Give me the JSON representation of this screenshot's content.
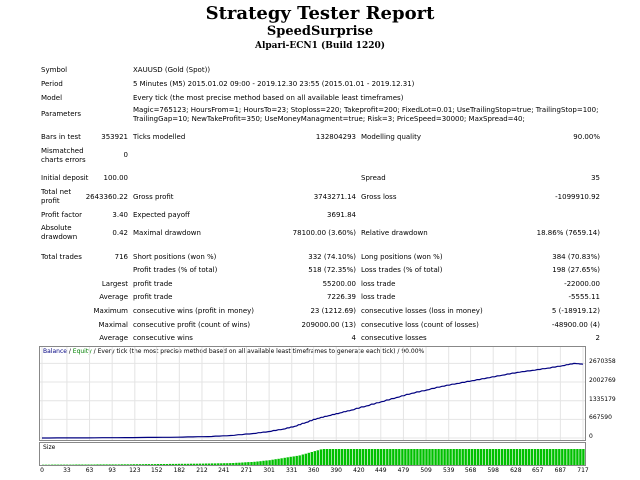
{
  "header": {
    "title": "Strategy Tester Report",
    "subtitle": "SpeedSurprise",
    "build": "Alpari-ECN1 (Build 1220)"
  },
  "info": {
    "symbol_label": "Symbol",
    "symbol_value": "XAUUSD (Gold (Spot))",
    "period_label": "Period",
    "period_value": "5 Minutes (M5) 2015.01.02 09:00 - 2019.12.30 23:55 (2015.01.01 - 2019.12.31)",
    "model_label": "Model",
    "model_value": "Every tick (the most precise method based on all available least timeframes)",
    "params_label": "Parameters",
    "params_line1": "Magic=765123; HoursFrom=1; HoursTo=23; Stoploss=220; Takeprofit=200; FixedLot=0.01; UseTrailingStop=true; TrailingStop=100;",
    "params_line2": "TrailingGap=10; NewTakeProfit=350; UseMoneyManagment=true; Risk=3; PriceSpeed=30000; MaxSpread=40;"
  },
  "stats": {
    "bars_label": "Bars in test",
    "bars_value": "353921",
    "ticks_label": "Ticks modelled",
    "ticks_value": "132804293",
    "quality_label": "Modelling quality",
    "quality_value": "90.00%",
    "mismatch_label1": "Mismatched",
    "mismatch_label2": "charts errors",
    "mismatch_value": "0",
    "deposit_label": "Initial deposit",
    "deposit_value": "100.00",
    "spread_label": "Spread",
    "spread_value": "35",
    "netprofit_label1": "Total net",
    "netprofit_label2": "profit",
    "netprofit_value": "2643360.22",
    "grossprofit_label": "Gross profit",
    "grossprofit_value": "3743271.14",
    "grossloss_label": "Gross loss",
    "grossloss_value": "-1099910.92",
    "pf_label": "Profit factor",
    "pf_value": "3.40",
    "payoff_label": "Expected payoff",
    "payoff_value": "3691.84",
    "absdd_label1": "Absolute",
    "absdd_label2": "drawdown",
    "absdd_value": "0.42",
    "maxdd_label": "Maximal drawdown",
    "maxdd_value": "78100.00 (3.60%)",
    "reldd_label": "Relative drawdown",
    "reldd_value": "18.86% (7659.14)",
    "trades_label": "Total trades",
    "trades_value": "716",
    "short_label": "Short positions (won %)",
    "short_value": "332 (74.10%)",
    "long_label": "Long positions (won %)",
    "long_value": "384 (70.83%)",
    "ptrades_label": "Profit trades (% of total)",
    "ptrades_value": "518 (72.35%)",
    "ltrades_label": "Loss trades (% of total)",
    "ltrades_value": "198 (27.65%)",
    "largest_label": "Largest",
    "largest_p_label": "profit trade",
    "largest_p_value": "55200.00",
    "largest_l_label": "loss trade",
    "largest_l_value": "-22000.00",
    "average_label": "Average",
    "average_p_label": "profit trade",
    "average_p_value": "7226.39",
    "average_l_label": "loss trade",
    "average_l_value": "-5555.11",
    "maximum_label": "Maximum",
    "maximum_p_label": "consecutive wins (profit in money)",
    "maximum_p_value": "23 (1212.69)",
    "maximum_l_label": "consecutive losses (loss in money)",
    "maximum_l_value": "5 (-18919.12)",
    "maximal_label": "Maximal",
    "maximal_p_label": "consecutive profit (count of wins)",
    "maximal_p_value": "209000.00 (13)",
    "maximal_l_label": "consecutive loss (count of losses)",
    "maximal_l_value": "-48900.00 (4)",
    "avg2_label": "Average",
    "avg2_p_label": "consecutive wins",
    "avg2_p_value": "4",
    "avg2_l_label": "consecutive losses",
    "avg2_l_value": "2"
  },
  "chart_data": {
    "type": "line",
    "caption_balance": "Balance",
    "caption_sep": " / ",
    "caption_equity": "Equity",
    "caption_rest": " / Every tick (the most precise method based on all available least timeframes to generate each tick) / 90.00%",
    "size_label": "Size",
    "y_ticks": [
      "2670358",
      "2002769",
      "1335179",
      "667590",
      "0"
    ],
    "y_values": [
      2670358,
      2002769,
      1335179,
      667590,
      0
    ],
    "ylim": [
      0,
      2900000
    ],
    "x_ticks": [
      "0",
      "33",
      "63",
      "93",
      "123",
      "152",
      "182",
      "212",
      "241",
      "271",
      "301",
      "331",
      "360",
      "390",
      "420",
      "449",
      "479",
      "509",
      "539",
      "568",
      "598",
      "628",
      "657",
      "687",
      "717"
    ],
    "xlim": [
      0,
      717
    ],
    "balance": [
      [
        0,
        100
      ],
      [
        60,
        5000
      ],
      [
        120,
        15000
      ],
      [
        180,
        30000
      ],
      [
        220,
        50000
      ],
      [
        250,
        90000
      ],
      [
        280,
        160000
      ],
      [
        300,
        230000
      ],
      [
        320,
        320000
      ],
      [
        335,
        420000
      ],
      [
        350,
        560000
      ],
      [
        365,
        700000
      ],
      [
        380,
        800000
      ],
      [
        395,
        900000
      ],
      [
        410,
        1000000
      ],
      [
        430,
        1150000
      ],
      [
        450,
        1300000
      ],
      [
        470,
        1450000
      ],
      [
        490,
        1600000
      ],
      [
        510,
        1720000
      ],
      [
        530,
        1850000
      ],
      [
        550,
        1950000
      ],
      [
        570,
        2050000
      ],
      [
        590,
        2150000
      ],
      [
        610,
        2250000
      ],
      [
        630,
        2350000
      ],
      [
        650,
        2420000
      ],
      [
        670,
        2500000
      ],
      [
        690,
        2590000
      ],
      [
        705,
        2670358
      ],
      [
        717,
        2643360
      ]
    ],
    "balance_color": "#000080",
    "equity_color": "#008000",
    "size_bars": [
      [
        0,
        0.02
      ],
      [
        100,
        0.04
      ],
      [
        200,
        0.08
      ],
      [
        250,
        0.12
      ],
      [
        280,
        0.2
      ],
      [
        300,
        0.3
      ],
      [
        320,
        0.45
      ],
      [
        340,
        0.6
      ],
      [
        355,
        0.8
      ],
      [
        370,
        1.0
      ],
      [
        717,
        1.0
      ]
    ]
  }
}
